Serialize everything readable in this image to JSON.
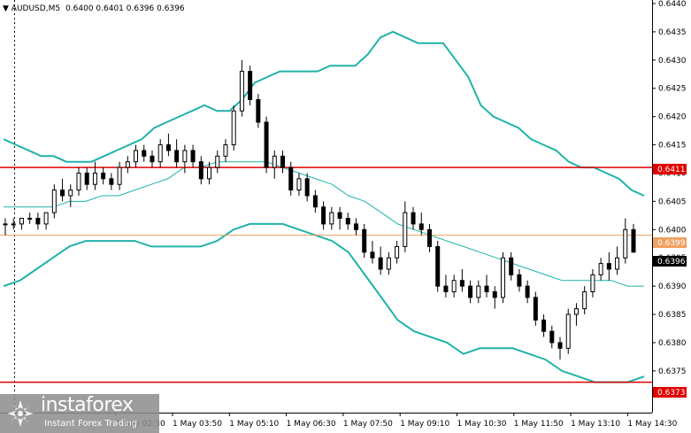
{
  "header": {
    "symbol": "AUDUSD,M5",
    "ohlc": "0.6400 0.6401 0.6396 0.6396"
  },
  "price_tags": {
    "resistance": "0.6411",
    "mid_level": "0.6399",
    "current": "0.6396",
    "support": "0.6373"
  },
  "logo": {
    "name": "instaforex",
    "tagline": "Instant Forex Trading"
  },
  "colors": {
    "band": "#20b2aa",
    "resistance_line": "#e00000",
    "mid_line": "#f0a060",
    "candle": "#000000"
  },
  "chart_data": {
    "type": "candlestick",
    "ylim": [
      0.6372,
      0.644
    ],
    "y_ticks": [
      "0.6440",
      "0.6435",
      "0.6430",
      "0.6425",
      "0.6420",
      "0.6415",
      "0.6410",
      "0.6405",
      "0.6400",
      "0.6395",
      "0.6390",
      "0.6385",
      "0.6380",
      "0.6375"
    ],
    "x_ticks": [
      "1 May 02:30",
      "1 May 03:50",
      "1 May 05:10",
      "1 May 06:30",
      "1 May 07:50",
      "1 May 09:10",
      "1 May 10:30",
      "1 May 11:50",
      "1 May 13:10",
      "1 May 14:30"
    ],
    "horizontal_levels": [
      0.6411,
      0.6399,
      0.6373
    ],
    "candles": [
      [
        0.6401,
        0.6402,
        0.6399,
        0.6401
      ],
      [
        0.6401,
        0.6402,
        0.64,
        0.6401
      ],
      [
        0.6401,
        0.6402,
        0.64,
        0.6402
      ],
      [
        0.6402,
        0.6403,
        0.6401,
        0.6402
      ],
      [
        0.6402,
        0.6403,
        0.64,
        0.6401
      ],
      [
        0.6401,
        0.6403,
        0.64,
        0.6403
      ],
      [
        0.6403,
        0.6408,
        0.6402,
        0.6407
      ],
      [
        0.6407,
        0.6409,
        0.6405,
        0.6406
      ],
      [
        0.6406,
        0.6408,
        0.6404,
        0.6407
      ],
      [
        0.6407,
        0.6411,
        0.6406,
        0.641
      ],
      [
        0.641,
        0.6411,
        0.6407,
        0.6408
      ],
      [
        0.6408,
        0.6412,
        0.6407,
        0.641
      ],
      [
        0.641,
        0.6411,
        0.6408,
        0.6409
      ],
      [
        0.6409,
        0.641,
        0.6407,
        0.6408
      ],
      [
        0.6408,
        0.6412,
        0.6407,
        0.6411
      ],
      [
        0.6411,
        0.6413,
        0.641,
        0.6412
      ],
      [
        0.6412,
        0.6415,
        0.6411,
        0.6414
      ],
      [
        0.6414,
        0.6415,
        0.6412,
        0.6413
      ],
      [
        0.6413,
        0.6414,
        0.6411,
        0.6412
      ],
      [
        0.6412,
        0.6416,
        0.6411,
        0.6415
      ],
      [
        0.6415,
        0.6417,
        0.6413,
        0.6414
      ],
      [
        0.6414,
        0.6416,
        0.6411,
        0.6412
      ],
      [
        0.6412,
        0.6415,
        0.641,
        0.6414
      ],
      [
        0.6414,
        0.6415,
        0.6411,
        0.6412
      ],
      [
        0.6412,
        0.6413,
        0.6408,
        0.6409
      ],
      [
        0.6409,
        0.6412,
        0.6408,
        0.6411
      ],
      [
        0.6411,
        0.6414,
        0.641,
        0.6413
      ],
      [
        0.6413,
        0.6416,
        0.6412,
        0.6415
      ],
      [
        0.6415,
        0.6422,
        0.6414,
        0.6421
      ],
      [
        0.6421,
        0.643,
        0.642,
        0.6428
      ],
      [
        0.6428,
        0.6429,
        0.6422,
        0.6423
      ],
      [
        0.6423,
        0.6424,
        0.6418,
        0.6419
      ],
      [
        0.6419,
        0.642,
        0.641,
        0.6411
      ],
      [
        0.6411,
        0.6414,
        0.6409,
        0.6413
      ],
      [
        0.6413,
        0.6414,
        0.641,
        0.6411
      ],
      [
        0.6411,
        0.6412,
        0.6406,
        0.6407
      ],
      [
        0.6407,
        0.641,
        0.6406,
        0.6409
      ],
      [
        0.6409,
        0.641,
        0.6405,
        0.6406
      ],
      [
        0.6406,
        0.6407,
        0.6403,
        0.6404
      ],
      [
        0.6404,
        0.6405,
        0.64,
        0.6401
      ],
      [
        0.6401,
        0.6404,
        0.64,
        0.6403
      ],
      [
        0.6403,
        0.6404,
        0.64,
        0.6402
      ],
      [
        0.6402,
        0.6403,
        0.64,
        0.6401
      ],
      [
        0.6401,
        0.6402,
        0.6399,
        0.64
      ],
      [
        0.64,
        0.6401,
        0.6395,
        0.6396
      ],
      [
        0.6396,
        0.6398,
        0.6394,
        0.6395
      ],
      [
        0.6395,
        0.6397,
        0.6392,
        0.6393
      ],
      [
        0.6393,
        0.6396,
        0.6392,
        0.6395
      ],
      [
        0.6395,
        0.6398,
        0.6394,
        0.6397
      ],
      [
        0.6397,
        0.6405,
        0.6396,
        0.6403
      ],
      [
        0.6403,
        0.6404,
        0.64,
        0.6401
      ],
      [
        0.6401,
        0.6403,
        0.6399,
        0.64
      ],
      [
        0.64,
        0.6401,
        0.6396,
        0.6397
      ],
      [
        0.6397,
        0.6398,
        0.6389,
        0.639
      ],
      [
        0.639,
        0.6392,
        0.6388,
        0.6389
      ],
      [
        0.6389,
        0.6392,
        0.6388,
        0.6391
      ],
      [
        0.6391,
        0.6393,
        0.6389,
        0.639
      ],
      [
        0.639,
        0.6391,
        0.6387,
        0.6388
      ],
      [
        0.6388,
        0.6391,
        0.6387,
        0.639
      ],
      [
        0.639,
        0.6392,
        0.6388,
        0.6389
      ],
      [
        0.6389,
        0.639,
        0.6386,
        0.6388
      ],
      [
        0.6388,
        0.6396,
        0.6387,
        0.6395
      ],
      [
        0.6395,
        0.6396,
        0.6391,
        0.6392
      ],
      [
        0.6392,
        0.6393,
        0.6389,
        0.639
      ],
      [
        0.639,
        0.6391,
        0.6387,
        0.6388
      ],
      [
        0.6388,
        0.6389,
        0.6383,
        0.6384
      ],
      [
        0.6384,
        0.6385,
        0.6381,
        0.6382
      ],
      [
        0.6382,
        0.6383,
        0.6379,
        0.638
      ],
      [
        0.638,
        0.6381,
        0.6377,
        0.6379
      ],
      [
        0.6379,
        0.6386,
        0.6378,
        0.6385
      ],
      [
        0.6385,
        0.6387,
        0.6383,
        0.6386
      ],
      [
        0.6386,
        0.639,
        0.6385,
        0.6389
      ],
      [
        0.6389,
        0.6393,
        0.6388,
        0.6392
      ],
      [
        0.6392,
        0.6395,
        0.6391,
        0.6394
      ],
      [
        0.6394,
        0.6396,
        0.6391,
        0.6393
      ],
      [
        0.6393,
        0.6397,
        0.6392,
        0.6395
      ],
      [
        0.6395,
        0.6402,
        0.6394,
        0.64
      ],
      [
        0.64,
        0.6401,
        0.6396,
        0.6396
      ]
    ],
    "upper_band": [
      0.6416,
      0.6415,
      0.6414,
      0.6413,
      0.6413,
      0.6412,
      0.6412,
      0.6412,
      0.6413,
      0.6414,
      0.6415,
      0.6416,
      0.6418,
      0.6419,
      0.642,
      0.6421,
      0.6422,
      0.6421,
      0.6421,
      0.6423,
      0.6426,
      0.6427,
      0.6428,
      0.6428,
      0.6428,
      0.6428,
      0.6429,
      0.6429,
      0.6429,
      0.6431,
      0.6434,
      0.6435,
      0.6434,
      0.6433,
      0.6433,
      0.6433,
      0.643,
      0.6427,
      0.6422,
      0.642,
      0.6419,
      0.6418,
      0.6416,
      0.6415,
      0.6414,
      0.6412,
      0.6411,
      0.6411,
      0.641,
      0.6409,
      0.6407,
      0.6406
    ],
    "middle_band": [
      0.6404,
      0.6404,
      0.6404,
      0.6404,
      0.6405,
      0.6405,
      0.6406,
      0.6406,
      0.6407,
      0.6408,
      0.6409,
      0.6411,
      0.6411,
      0.6412,
      0.6412,
      0.6412,
      0.6412,
      0.6411,
      0.641,
      0.6409,
      0.6408,
      0.6406,
      0.6405,
      0.6403,
      0.6401,
      0.64,
      0.6399,
      0.6398,
      0.6397,
      0.6396,
      0.6395,
      0.6394,
      0.6393,
      0.6392,
      0.6391,
      0.6391,
      0.6391,
      0.6391,
      0.639,
      0.639
    ],
    "lower_band": [
      0.639,
      0.6391,
      0.6393,
      0.6395,
      0.6397,
      0.6398,
      0.6398,
      0.6398,
      0.6398,
      0.6397,
      0.6397,
      0.6397,
      0.6397,
      0.6398,
      0.64,
      0.6401,
      0.6401,
      0.6401,
      0.64,
      0.6399,
      0.6398,
      0.6396,
      0.6392,
      0.6388,
      0.6384,
      0.6382,
      0.6381,
      0.638,
      0.6378,
      0.6379,
      0.6379,
      0.6379,
      0.6378,
      0.6377,
      0.6375,
      0.6374,
      0.6373,
      0.6373,
      0.6373,
      0.6374
    ]
  }
}
